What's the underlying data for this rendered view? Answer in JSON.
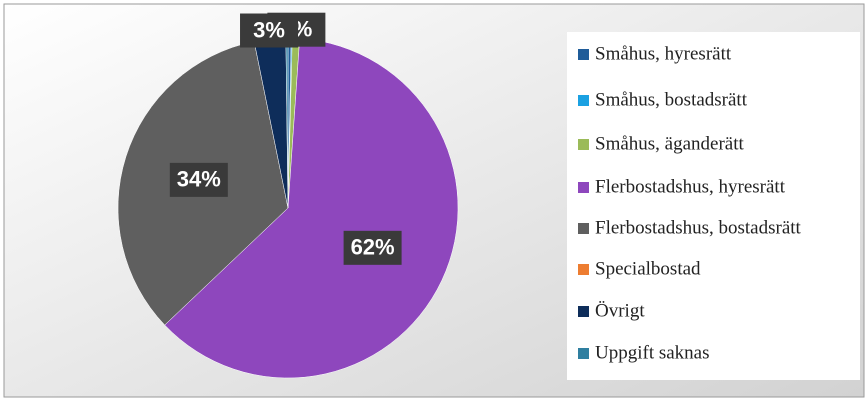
{
  "chart_data": {
    "type": "pie",
    "categories": [
      "Småhus, hyresrätt",
      "Småhus, bostadsrätt",
      "Småhus, äganderätt",
      "Flerbostadshus, hyresrätt",
      "Flerbostadshus, bostadsrätt",
      "Specialbostad",
      "Övrigt",
      "Uppgift saknas"
    ],
    "values": [
      0.3,
      0.1,
      0.7,
      62,
      34,
      0,
      3,
      0.2
    ],
    "value_labels": [
      null,
      null,
      "1%",
      "62%",
      "34%",
      null,
      "3%",
      null
    ],
    "colors": [
      "#1f5c99",
      "#1ba1e2",
      "#9bbb59",
      "#8e47bd",
      "#5f5f5f",
      "#ed7d31",
      "#0e2d5a",
      "#2f7fa0"
    ],
    "legend": "right"
  }
}
